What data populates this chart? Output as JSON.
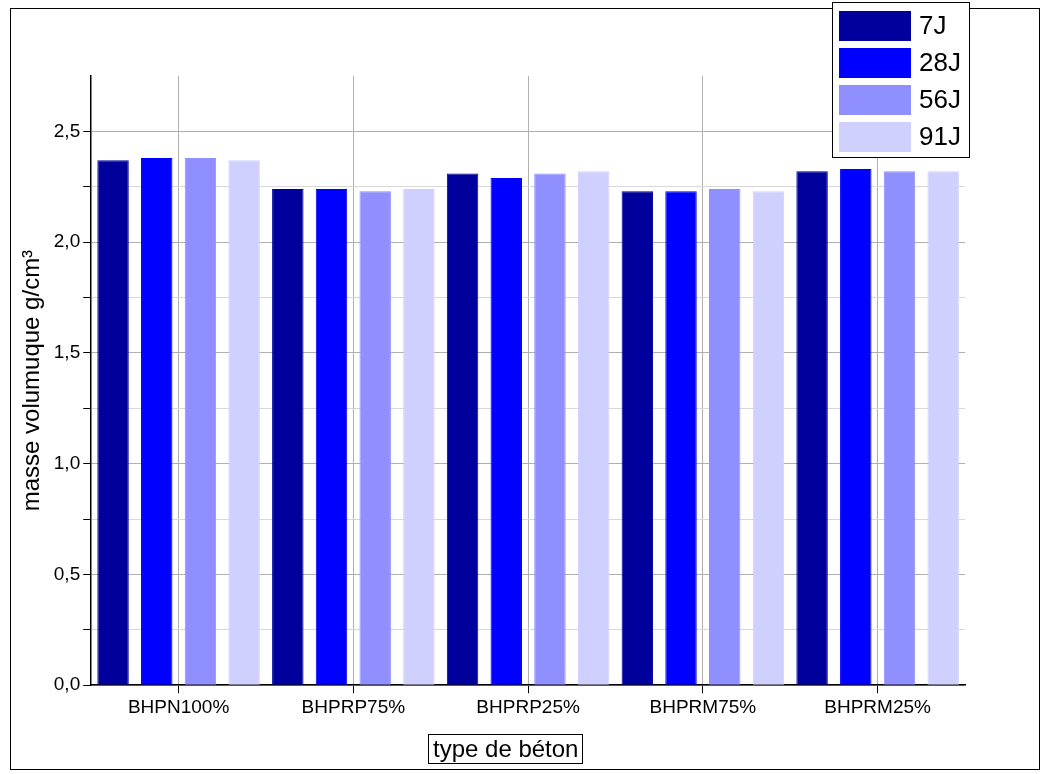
{
  "chart_data": {
    "type": "bar",
    "xlabel": "type de béton",
    "ylabel": "masse volumuque g/cm³",
    "categories": [
      "BHPN100%",
      "BHPRP75%",
      "BHPRP25%",
      "BHPRM75%",
      "BHPRM25%"
    ],
    "series": [
      {
        "name": "7J",
        "color": "#00009c",
        "values": [
          2.37,
          2.24,
          2.31,
          2.23,
          2.32
        ]
      },
      {
        "name": "28J",
        "color": "#0000ff",
        "values": [
          2.38,
          2.24,
          2.29,
          2.23,
          2.33
        ]
      },
      {
        "name": "56J",
        "color": "#8f8fff",
        "values": [
          2.38,
          2.23,
          2.31,
          2.24,
          2.32
        ]
      },
      {
        "name": "91J",
        "color": "#d0d0ff",
        "values": [
          2.37,
          2.24,
          2.32,
          2.23,
          2.32
        ]
      }
    ],
    "ylim": [
      0,
      2.75
    ],
    "yticks": [
      {
        "value": 0,
        "label": "0,0"
      },
      {
        "value": 0.25,
        "label": null
      },
      {
        "value": 0.5,
        "label": "0,5"
      },
      {
        "value": 0.75,
        "label": null
      },
      {
        "value": 1,
        "label": "1,0"
      },
      {
        "value": 1.25,
        "label": null
      },
      {
        "value": 1.5,
        "label": "1,5"
      },
      {
        "value": 1.75,
        "label": null
      },
      {
        "value": 2,
        "label": "2,0"
      },
      {
        "value": 2.25,
        "label": null
      },
      {
        "value": 2.5,
        "label": "2,5"
      }
    ],
    "grid": true,
    "legend": "top right"
  }
}
